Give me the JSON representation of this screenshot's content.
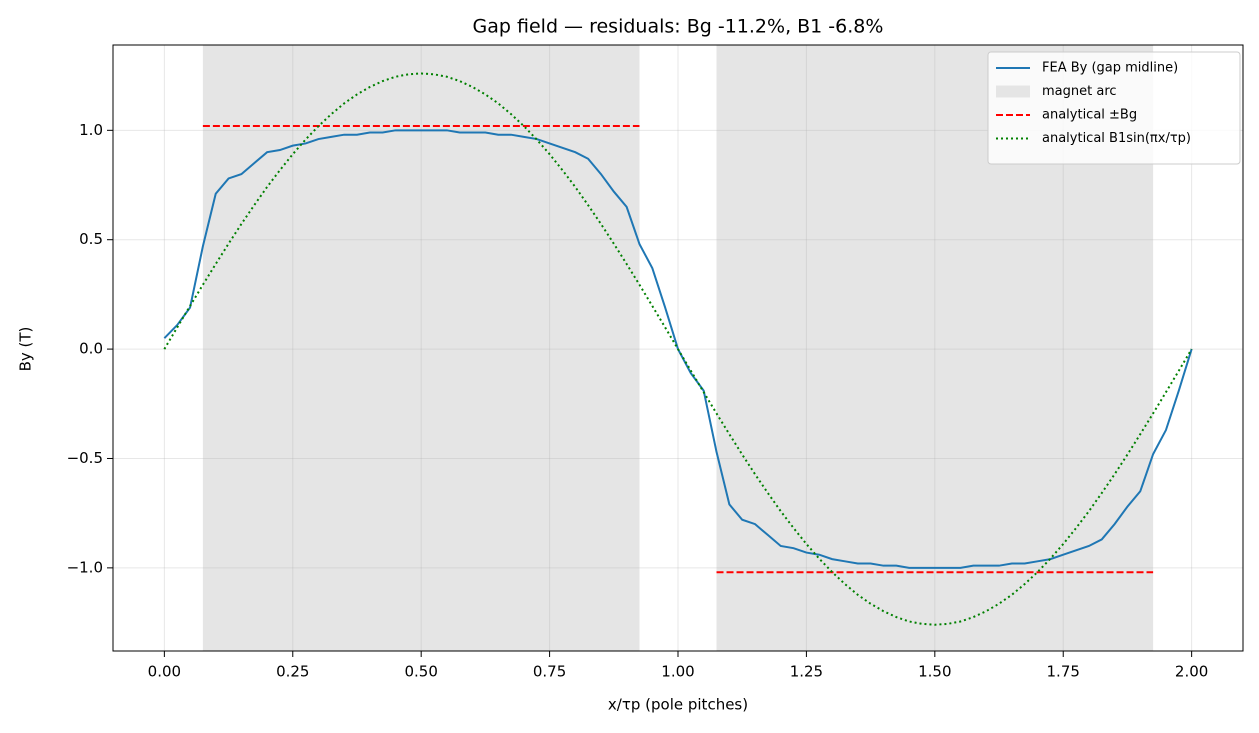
{
  "chart_data": {
    "type": "line",
    "title": "Gap field — residuals: Bg -11.2%, B1 -6.8%",
    "xlabel": "x/τp (pole pitches)",
    "ylabel": "By (T)",
    "xlim": [
      -0.1,
      2.1
    ],
    "ylim": [
      -1.38,
      1.39
    ],
    "xticks": [
      {
        "value": 0,
        "label": "0.00"
      },
      {
        "value": 0.25,
        "label": "0.25"
      },
      {
        "value": 0.5,
        "label": "0.50"
      },
      {
        "value": 0.75,
        "label": "0.75"
      },
      {
        "value": 1,
        "label": "1.00"
      },
      {
        "value": 1.25,
        "label": "1.25"
      },
      {
        "value": 1.5,
        "label": "1.50"
      },
      {
        "value": 1.75,
        "label": "1.75"
      },
      {
        "value": 2,
        "label": "2.00"
      }
    ],
    "yticks": [
      {
        "value": -1,
        "label": "−1.0"
      },
      {
        "value": -0.5,
        "label": "−0.5"
      },
      {
        "value": 0,
        "label": "0.0"
      },
      {
        "value": 0.5,
        "label": "0.5"
      },
      {
        "value": 1,
        "label": "1.0"
      }
    ],
    "grid": true,
    "legend": "upper right",
    "spans": {
      "name": "magnet arc",
      "color": "#e5e5e5",
      "ranges": [
        [
          0.075,
          0.925
        ],
        [
          1.075,
          1.925
        ]
      ]
    },
    "series": [
      {
        "name": "FEA By (gap midline)",
        "color": "#1f77b4",
        "linestyle": "solid",
        "x": [
          0,
          0.025,
          0.05,
          0.075,
          0.1,
          0.125,
          0.15,
          0.175,
          0.2,
          0.225,
          0.25,
          0.275,
          0.3,
          0.325,
          0.35,
          0.375,
          0.4,
          0.425,
          0.45,
          0.475,
          0.5,
          0.525,
          0.55,
          0.575,
          0.6,
          0.625,
          0.65,
          0.675,
          0.7,
          0.725,
          0.75,
          0.775,
          0.8,
          0.825,
          0.85,
          0.875,
          0.9,
          0.925,
          0.95,
          0.975,
          1,
          1.025,
          1.05,
          1.075,
          1.1,
          1.125,
          1.15,
          1.175,
          1.2,
          1.225,
          1.25,
          1.275,
          1.3,
          1.325,
          1.35,
          1.375,
          1.4,
          1.425,
          1.45,
          1.475,
          1.5,
          1.525,
          1.55,
          1.575,
          1.6,
          1.625,
          1.65,
          1.675,
          1.7,
          1.725,
          1.75,
          1.775,
          1.8,
          1.825,
          1.85,
          1.875,
          1.9,
          1.925,
          1.95,
          1.975,
          2
        ],
        "values": [
          0.05,
          0.11,
          0.19,
          0.47,
          0.71,
          0.78,
          0.8,
          0.85,
          0.9,
          0.91,
          0.93,
          0.94,
          0.96,
          0.97,
          0.98,
          0.98,
          0.99,
          0.99,
          1,
          1,
          1,
          1,
          1,
          0.99,
          0.99,
          0.99,
          0.98,
          0.98,
          0.97,
          0.96,
          0.94,
          0.92,
          0.9,
          0.87,
          0.8,
          0.72,
          0.65,
          0.48,
          0.37,
          0.19,
          0,
          -0.11,
          -0.19,
          -0.47,
          -0.71,
          -0.78,
          -0.8,
          -0.85,
          -0.9,
          -0.91,
          -0.93,
          -0.94,
          -0.96,
          -0.97,
          -0.98,
          -0.98,
          -0.99,
          -0.99,
          -1,
          -1,
          -1,
          -1,
          -1,
          -0.99,
          -0.99,
          -0.99,
          -0.98,
          -0.98,
          -0.97,
          -0.96,
          -0.94,
          -0.92,
          -0.9,
          -0.87,
          -0.8,
          -0.72,
          -0.65,
          -0.48,
          -0.37,
          -0.19,
          0
        ]
      },
      {
        "name": "analytical ±Bg",
        "color": "#ff0000",
        "linestyle": "dashed",
        "x": [
          0.075,
          0.925,
          1,
          1.075,
          1.925
        ],
        "values": [
          1.02,
          1.02,
          null,
          -1.02,
          -1.02
        ]
      },
      {
        "name": "analytical B1sin(πx/τp)",
        "color": "#008000",
        "linestyle": "dotted",
        "x": [
          0,
          0.025,
          0.05,
          0.075,
          0.1,
          0.125,
          0.15,
          0.175,
          0.2,
          0.225,
          0.25,
          0.275,
          0.3,
          0.325,
          0.35,
          0.375,
          0.4,
          0.425,
          0.45,
          0.475,
          0.5,
          0.525,
          0.55,
          0.575,
          0.6,
          0.625,
          0.65,
          0.675,
          0.7,
          0.725,
          0.75,
          0.775,
          0.8,
          0.825,
          0.85,
          0.875,
          0.9,
          0.925,
          0.95,
          0.975,
          1,
          1.025,
          1.05,
          1.075,
          1.1,
          1.125,
          1.15,
          1.175,
          1.2,
          1.225,
          1.25,
          1.275,
          1.3,
          1.325,
          1.35,
          1.375,
          1.4,
          1.425,
          1.45,
          1.475,
          1.5,
          1.525,
          1.55,
          1.575,
          1.6,
          1.625,
          1.65,
          1.675,
          1.7,
          1.725,
          1.75,
          1.775,
          1.8,
          1.825,
          1.85,
          1.875,
          1.9,
          1.925,
          1.95,
          1.975,
          2
        ],
        "values": [
          0,
          0.099,
          0.197,
          0.294,
          0.389,
          0.482,
          0.572,
          0.658,
          0.741,
          0.818,
          0.891,
          0.958,
          1.019,
          1.074,
          1.123,
          1.164,
          1.198,
          1.225,
          1.245,
          1.256,
          1.26,
          1.256,
          1.245,
          1.225,
          1.198,
          1.164,
          1.123,
          1.074,
          1.019,
          0.958,
          0.891,
          0.818,
          0.741,
          0.658,
          0.572,
          0.482,
          0.389,
          0.294,
          0.197,
          0.099,
          0,
          -0.099,
          -0.197,
          -0.294,
          -0.389,
          -0.482,
          -0.572,
          -0.658,
          -0.741,
          -0.818,
          -0.891,
          -0.958,
          -1.019,
          -1.074,
          -1.123,
          -1.164,
          -1.198,
          -1.225,
          -1.245,
          -1.256,
          -1.26,
          -1.256,
          -1.245,
          -1.225,
          -1.198,
          -1.164,
          -1.123,
          -1.074,
          -1.019,
          -0.958,
          -0.891,
          -0.818,
          -0.741,
          -0.658,
          -0.572,
          -0.482,
          -0.389,
          -0.294,
          -0.197,
          -0.099,
          0
        ]
      }
    ]
  }
}
